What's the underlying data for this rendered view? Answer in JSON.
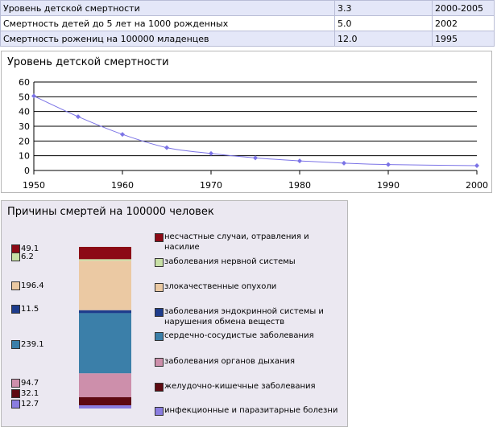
{
  "stats_table": {
    "rows": [
      {
        "label": "Уровень детской смертности",
        "value": "3.3",
        "period": "2000-2005"
      },
      {
        "label": "Смертность детей до 5 лет на 1000 рожденных",
        "value": "5.0",
        "period": "2002"
      },
      {
        "label": "Смертность рожениц на 100000 младенцев",
        "value": "12.0",
        "period": "1995"
      }
    ]
  },
  "chart_data": [
    {
      "type": "line",
      "title": "Уровень детской смертности",
      "x": [
        1950,
        1955,
        1960,
        1965,
        1970,
        1975,
        1980,
        1985,
        1990,
        2000
      ],
      "values": [
        50.5,
        36.5,
        24.5,
        15.5,
        11.5,
        8.5,
        6.5,
        5.0,
        4.0,
        3.3
      ],
      "xlim": [
        1950,
        2000
      ],
      "ylim": [
        0,
        60
      ],
      "x_ticks": [
        1950,
        1960,
        1970,
        1980,
        1990,
        2000
      ],
      "y_ticks": [
        0,
        10,
        20,
        30,
        40,
        50,
        60
      ],
      "grid": true,
      "line_color": "#7b73e6"
    },
    {
      "type": "bar",
      "stacked": true,
      "title": "Причины смертей на 100000 человек",
      "series": [
        {
          "name": "несчастные случаи, отравления и насилие",
          "value": 49.1,
          "label": "49.1",
          "color": "#8c0a16"
        },
        {
          "name": "заболевания нервной системы",
          "value": 6.2,
          "label": "6.2",
          "color": "#c8e0a6"
        },
        {
          "name": "злокачественные опухоли",
          "value": 196.4,
          "label": "196.4",
          "color": "#ebc9a3"
        },
        {
          "name": "заболевания эндокринной системы и нарушения обмена веществ",
          "value": 11.5,
          "label": "11.5",
          "color": "#1e3c8c"
        },
        {
          "name": "сердечно-сосудистые заболевания",
          "value": 239.1,
          "label": "239.1",
          "color": "#3b7fa9"
        },
        {
          "name": "заболевания органов дыхания",
          "value": 94.7,
          "label": "94.7",
          "color": "#cd8fab"
        },
        {
          "name": "желудочно-кишечные заболевания",
          "value": 32.1,
          "label": "32.1",
          "color": "#5e0a12"
        },
        {
          "name": "инфекционные и паразитарные болезни",
          "value": 12.7,
          "label": "12.7",
          "color": "#8a7de0"
        }
      ]
    }
  ]
}
